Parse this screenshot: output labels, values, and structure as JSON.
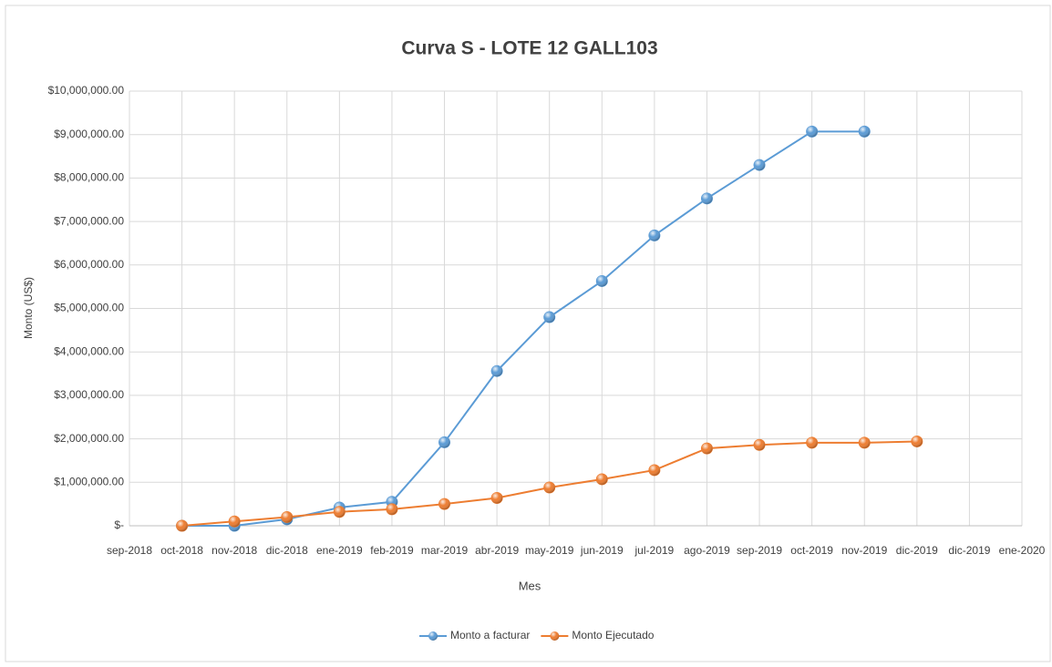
{
  "chart_data": {
    "type": "line",
    "title": "Curva S - LOTE 12 GALL103",
    "x_label": "Mes",
    "y_label": "Monto (US$)",
    "categories": [
      "sep-2018",
      "oct-2018",
      "nov-2018",
      "dic-2018",
      "ene-2019",
      "feb-2019",
      "mar-2019",
      "abr-2019",
      "may-2019",
      "jun-2019",
      "jul-2019",
      "ago-2019",
      "sep-2019",
      "oct-2019",
      "nov-2019",
      "dic-2019",
      "dic-2019",
      "ene-2020"
    ],
    "series": [
      {
        "name": "Monto a facturar",
        "color": "#5b9bd5",
        "values": [
          null,
          0,
          0,
          150000,
          420000,
          550000,
          1920000,
          3560000,
          4800000,
          5630000,
          6680000,
          7530000,
          8300000,
          9070000,
          9070000,
          null,
          null,
          null
        ]
      },
      {
        "name": "Monto Ejecutado",
        "color": "#ed7d31",
        "values": [
          null,
          0,
          100000,
          200000,
          320000,
          380000,
          500000,
          640000,
          880000,
          1070000,
          1280000,
          1780000,
          1860000,
          1910000,
          1910000,
          1940000,
          null,
          null
        ]
      }
    ],
    "ylim": [
      0,
      10000000
    ],
    "yticks": [
      {
        "value": 0,
        "label": "$-"
      },
      {
        "value": 1000000,
        "label": "$1,000,000.00"
      },
      {
        "value": 2000000,
        "label": "$2,000,000.00"
      },
      {
        "value": 3000000,
        "label": "$3,000,000.00"
      },
      {
        "value": 4000000,
        "label": "$4,000,000.00"
      },
      {
        "value": 5000000,
        "label": "$5,000,000.00"
      },
      {
        "value": 6000000,
        "label": "$6,000,000.00"
      },
      {
        "value": 7000000,
        "label": "$7,000,000.00"
      },
      {
        "value": 8000000,
        "label": "$8,000,000.00"
      },
      {
        "value": 9000000,
        "label": "$9,000,000.00"
      },
      {
        "value": 10000000,
        "label": "$10,000,000.00"
      }
    ],
    "grid": true,
    "legend": "bottom"
  }
}
